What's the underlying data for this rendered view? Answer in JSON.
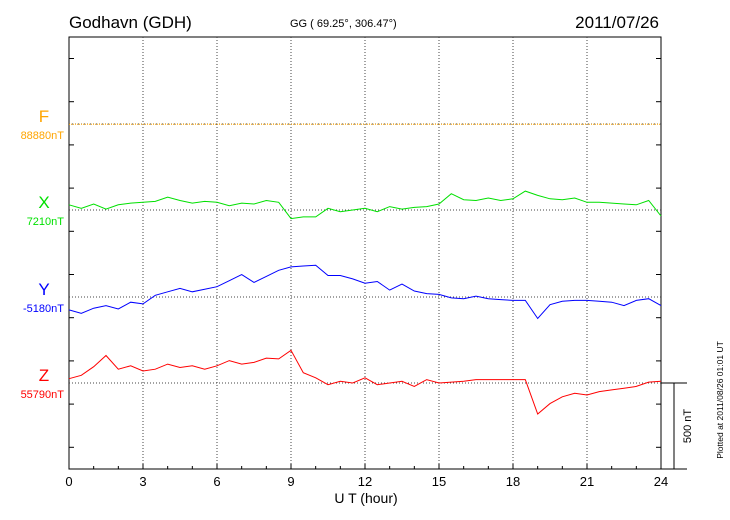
{
  "header": {
    "station": "Godhavn (GDH)",
    "coords": "GG ( 69.25°, 306.47°)",
    "date": "2011/07/26"
  },
  "side_note": "Plotted at 2011/08/26 01:01  UT",
  "scale_label": "500 nT",
  "chart_data": {
    "type": "line",
    "xlabel": "U T (hour)",
    "xlim": [
      0,
      24
    ],
    "xticks": [
      "0",
      "3",
      "6",
      "9",
      "12",
      "15",
      "18",
      "21",
      "24"
    ],
    "grid": true,
    "scale_bar_nT": 500,
    "series": [
      {
        "name": "F",
        "baseline_label": "88880nT",
        "color": "#ffa500",
        "x": [
          0,
          3,
          6,
          9,
          12,
          15,
          18,
          21,
          24
        ],
        "offset_nT": [
          -2,
          -2,
          -1,
          -2,
          -2,
          -1,
          -2,
          -2,
          -2
        ]
      },
      {
        "name": "X",
        "baseline_label": "7210nT",
        "color": "#00e000",
        "x": [
          0,
          0.5,
          1,
          1.5,
          2,
          2.5,
          3,
          3.5,
          4,
          4.5,
          5,
          5.5,
          6,
          6.5,
          7,
          7.5,
          8,
          8.5,
          9,
          9.5,
          10,
          10.5,
          11,
          11.5,
          12,
          12.5,
          13,
          13.5,
          14,
          14.5,
          15,
          15.5,
          16,
          16.5,
          17,
          17.5,
          18,
          18.5,
          19,
          19.5,
          20,
          20.5,
          21,
          21.5,
          22,
          22.5,
          23,
          23.5,
          24
        ],
        "offset_nT": [
          30,
          10,
          35,
          5,
          30,
          40,
          45,
          50,
          75,
          55,
          40,
          50,
          45,
          25,
          40,
          35,
          55,
          45,
          -50,
          -40,
          -40,
          10,
          -10,
          0,
          10,
          -10,
          20,
          5,
          15,
          20,
          35,
          95,
          60,
          55,
          70,
          55,
          65,
          110,
          85,
          65,
          60,
          70,
          45,
          45,
          40,
          35,
          30,
          55,
          -35
        ]
      },
      {
        "name": "Y",
        "baseline_label": "-5180nT",
        "color": "#0000ff",
        "x": [
          0,
          0.5,
          1,
          1.5,
          2,
          2.5,
          3,
          3.5,
          4,
          4.5,
          5,
          5.5,
          6,
          6.5,
          7,
          7.5,
          8,
          8.5,
          9,
          9.5,
          10,
          10.5,
          11,
          11.5,
          12,
          12.5,
          13,
          13.5,
          14,
          14.5,
          15,
          15.5,
          16,
          16.5,
          17,
          17.5,
          18,
          18.5,
          19,
          19.5,
          20,
          20.5,
          21,
          21.5,
          22,
          22.5,
          23,
          23.5,
          24
        ],
        "offset_nT": [
          -75,
          -95,
          -65,
          -50,
          -70,
          -30,
          -40,
          10,
          30,
          50,
          30,
          45,
          60,
          95,
          130,
          85,
          120,
          155,
          175,
          180,
          185,
          125,
          125,
          105,
          80,
          90,
          40,
          75,
          35,
          20,
          15,
          -5,
          -10,
          5,
          -10,
          -15,
          -20,
          -20,
          -125,
          -45,
          -25,
          -20,
          -20,
          -25,
          -30,
          -50,
          -20,
          -10,
          -50
        ]
      },
      {
        "name": "Z",
        "baseline_label": "55790nT",
        "color": "#ff0000",
        "x": [
          0,
          0.5,
          1,
          1.5,
          2,
          2.5,
          3,
          3.5,
          4,
          4.5,
          5,
          5.5,
          6,
          6.5,
          7,
          7.5,
          8,
          8.5,
          9,
          9.5,
          10,
          10.5,
          11,
          11.5,
          12,
          12.5,
          13,
          13.5,
          14,
          14.5,
          15,
          15.5,
          16,
          16.5,
          17,
          17.5,
          18,
          18.5,
          19,
          19.5,
          20,
          20.5,
          21,
          21.5,
          22,
          22.5,
          23,
          23.5,
          24
        ],
        "offset_nT": [
          25,
          45,
          95,
          160,
          80,
          100,
          70,
          80,
          110,
          90,
          100,
          80,
          100,
          130,
          110,
          120,
          145,
          140,
          190,
          60,
          30,
          -10,
          10,
          0,
          30,
          -10,
          0,
          10,
          -20,
          20,
          0,
          5,
          10,
          20,
          20,
          20,
          20,
          20,
          -180,
          -120,
          -80,
          -60,
          -70,
          -50,
          -40,
          -30,
          -20,
          5,
          10
        ]
      }
    ]
  }
}
